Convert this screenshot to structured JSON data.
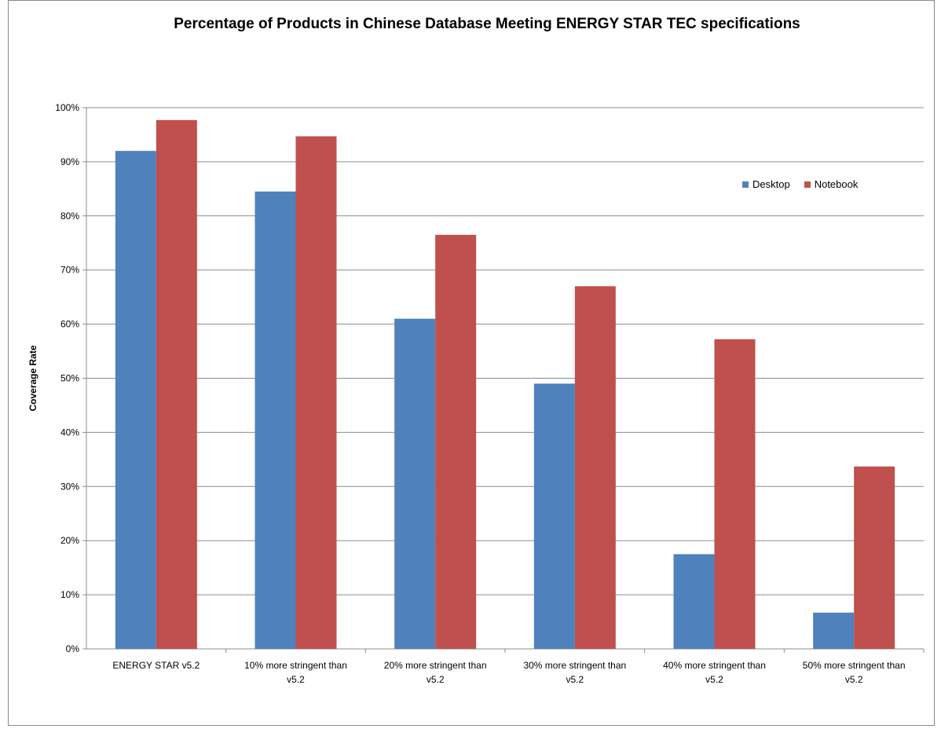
{
  "chart_data": {
    "type": "bar",
    "title": "Percentage of Products in Chinese Database Meeting ENERGY STAR TEC specifications",
    "xlabel": "",
    "ylabel": "Coverage Rate",
    "ylim": [
      0,
      100
    ],
    "yticks": [
      "0%",
      "10%",
      "20%",
      "30%",
      "40%",
      "50%",
      "60%",
      "70%",
      "80%",
      "90%",
      "100%"
    ],
    "grid": true,
    "legend_position": "top-right",
    "categories": [
      [
        "ENERGY STAR v5.2"
      ],
      [
        "10% more stringent than",
        "v5.2"
      ],
      [
        "20% more stringent than",
        "v5.2"
      ],
      [
        "30% more stringent than",
        "v5.2"
      ],
      [
        "40% more stringent than",
        "v5.2"
      ],
      [
        "50% more stringent than",
        "v5.2"
      ]
    ],
    "series": [
      {
        "name": "Desktop",
        "color": "#4f81bd",
        "values": [
          92,
          84.5,
          61,
          49,
          17.5,
          6.7
        ]
      },
      {
        "name": "Notebook",
        "color": "#c0504d",
        "values": [
          97.7,
          94.7,
          76.5,
          67,
          57.2,
          33.7
        ]
      }
    ]
  }
}
